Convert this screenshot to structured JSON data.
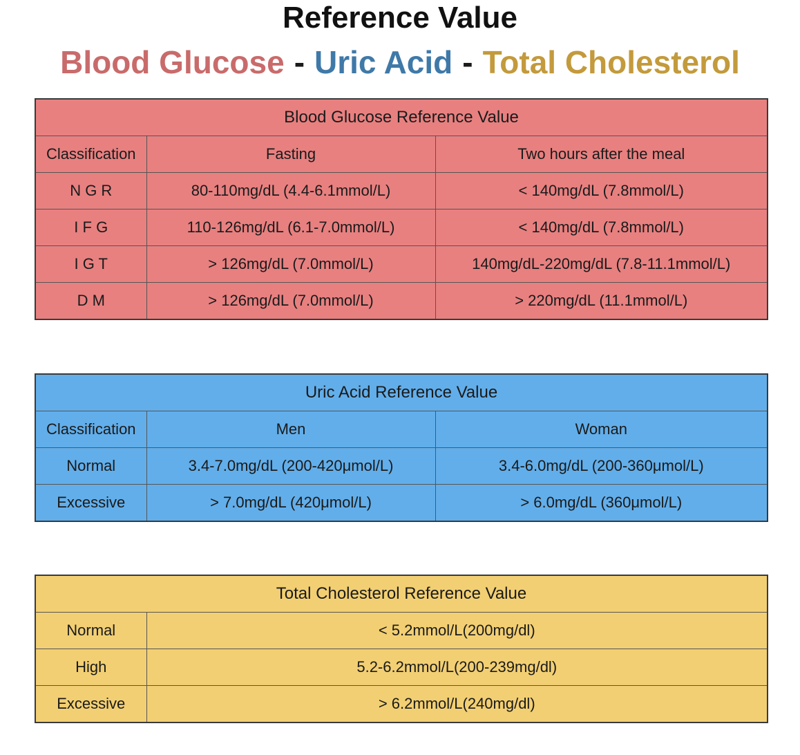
{
  "header": {
    "title": "Reference Value",
    "subtitle_parts": [
      {
        "text": "Blood Glucose",
        "color": "#c96b6b"
      },
      {
        "text": "-",
        "color": "#1a1a1a"
      },
      {
        "text": "Uric Acid",
        "color": "#3f79a8"
      },
      {
        "text": "-",
        "color": "#1a1a1a"
      },
      {
        "text": "Total Cholesterol",
        "color": "#c39a3c"
      }
    ]
  },
  "glucose": {
    "caption": "Blood Glucose Reference Value",
    "headers": [
      "Classification",
      "Fasting",
      "Two hours after the meal"
    ],
    "rows": [
      [
        "N G R",
        "80-110mg/dL (4.4-6.1mmol/L)",
        "< 140mg/dL (7.8mmol/L)"
      ],
      [
        "I F G",
        "110-126mg/dL (6.1-7.0mmol/L)",
        "< 140mg/dL (7.8mmol/L)"
      ],
      [
        "I G T",
        "> 126mg/dL (7.0mmol/L)",
        "140mg/dL-220mg/dL (7.8-11.1mmol/L)"
      ],
      [
        "D M",
        "> 126mg/dL (7.0mmol/L)",
        "> 220mg/dL (11.1mmol/L)"
      ]
    ]
  },
  "uric": {
    "caption": "Uric Acid Reference Value",
    "headers": [
      "Classification",
      "Men",
      "Woman"
    ],
    "rows": [
      [
        "Normal",
        "3.4-7.0mg/dL (200-420μmol/L)",
        "3.4-6.0mg/dL (200-360μmol/L)"
      ],
      [
        "Excessive",
        "> 7.0mg/dL (420μmol/L)",
        "> 6.0mg/dL (360μmol/L)"
      ]
    ]
  },
  "cholesterol": {
    "caption": "Total Cholesterol Reference Value",
    "rows": [
      [
        "Normal",
        "< 5.2mmol/L(200mg/dl)"
      ],
      [
        "High",
        "5.2-6.2mmol/L(200-239mg/dl)"
      ],
      [
        "Excessive",
        "> 6.2mmol/L(240mg/dl)"
      ]
    ]
  }
}
